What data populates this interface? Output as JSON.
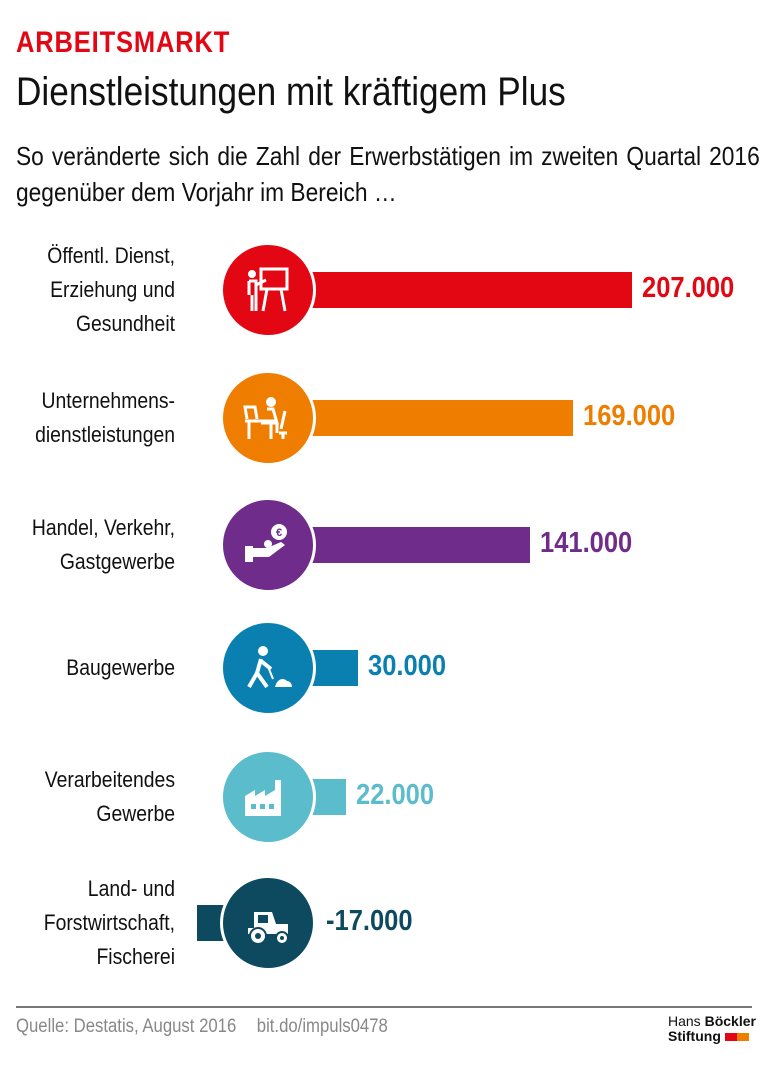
{
  "header": {
    "kicker": "ARBEITSMARKT",
    "title": "Dienstleistungen mit kräftigem Plus",
    "subtitle": "So veränderte sich die Zahl der Erwerbstätigen im zweiten Quartal 2016 gegenüber dem Vorjahr im Bereich …"
  },
  "chart_data": {
    "type": "bar",
    "orientation": "horizontal",
    "categories": [
      "Öffentl. Dienst, Erziehung und Gesundheit",
      "Unternehmens-dienstleistungen",
      "Handel, Verkehr, Gastgewerbe",
      "Baugewerbe",
      "Verarbeitendes Gewerbe",
      "Land- und Forstwirtschaft, Fischerei"
    ],
    "label_lines": [
      [
        "Öffentl. Dienst,",
        "Erziehung und",
        "Gesundheit"
      ],
      [
        "Unternehmens-",
        "dienstleistungen"
      ],
      [
        "Handel, Verkehr,",
        "Gastgewerbe"
      ],
      [
        "Baugewerbe"
      ],
      [
        "Verarbeitendes",
        "Gewerbe"
      ],
      [
        "Land- und",
        "Forstwirtschaft,",
        "Fischerei"
      ]
    ],
    "values": [
      207000,
      169000,
      141000,
      30000,
      22000,
      -17000
    ],
    "value_labels": [
      "207.000",
      "169.000",
      "141.000",
      "30.000",
      "22.000",
      "-17.000"
    ],
    "colors": [
      "#e30613",
      "#ef7d00",
      "#6f2c8b",
      "#0a80b0",
      "#5bbccb",
      "#0d4a60"
    ],
    "icons": [
      "teacher-icon",
      "office-worker-icon",
      "hand-euro-coin-icon",
      "construction-worker-icon",
      "factory-icon",
      "tractor-icon"
    ],
    "grid": false,
    "legend": "none"
  },
  "footer": {
    "source": "Quelle: Destatis, August 2016",
    "link": "bit.do/impuls0478",
    "logo_line1_a": "Hans",
    "logo_line1_b": "Böckler",
    "logo_line2": "Stiftung",
    "logo_colors": [
      "#e30613",
      "#ef7d00"
    ]
  }
}
